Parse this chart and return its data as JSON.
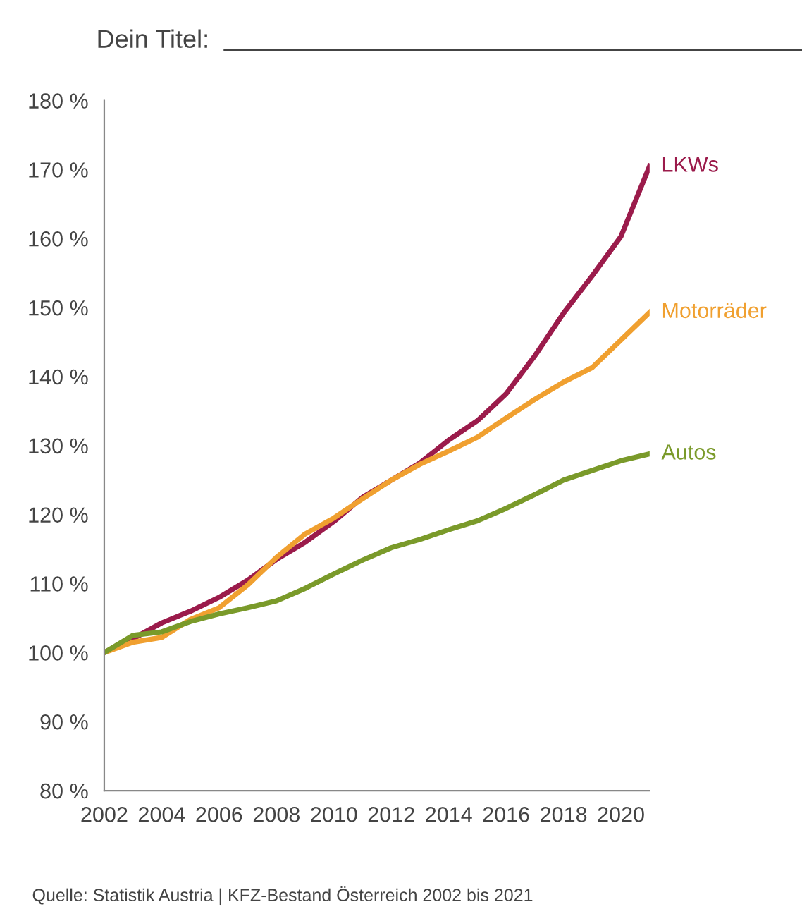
{
  "chart_data": {
    "type": "line",
    "title": "Dein Titel:",
    "x": [
      2002,
      2003,
      2004,
      2005,
      2006,
      2007,
      2008,
      2009,
      2010,
      2011,
      2012,
      2013,
      2014,
      2015,
      2016,
      2017,
      2018,
      2019,
      2020,
      2021
    ],
    "series": [
      {
        "name": "LKWs",
        "color": "#9b1b4b",
        "values": [
          100,
          102,
          104.3,
          106,
          108,
          110.5,
          113.5,
          116,
          119,
          122.5,
          125,
          127.5,
          130.8,
          133.6,
          137.5,
          143,
          149.2,
          154.6,
          160.3,
          170.5
        ]
      },
      {
        "name": "Motorräder",
        "color": "#f0a030",
        "values": [
          100,
          101.5,
          102.2,
          104.8,
          106.5,
          109.8,
          113.8,
          117.2,
          119.5,
          122.3,
          125,
          127.3,
          129.2,
          131.2,
          134,
          136.7,
          139.2,
          141.3,
          145.3,
          149.3
        ]
      },
      {
        "name": "Autos",
        "color": "#7a9a2a",
        "values": [
          100,
          102.5,
          103,
          104.5,
          105.6,
          106.5,
          107.5,
          109.3,
          111.4,
          113.4,
          115.2,
          116.4,
          117.8,
          119.1,
          120.9,
          122.9,
          125,
          126.4,
          127.8,
          128.8
        ]
      }
    ],
    "xlim": [
      2002,
      2021
    ],
    "xticks": [
      2002,
      2004,
      2006,
      2008,
      2010,
      2012,
      2014,
      2016,
      2018,
      2020
    ],
    "ylim": [
      80,
      180
    ],
    "yticks": [
      {
        "value": 80,
        "label": "80 %"
      },
      {
        "value": 90,
        "label": "90 %"
      },
      {
        "value": 100,
        "label": "100 %"
      },
      {
        "value": 110,
        "label": "110 %"
      },
      {
        "value": 120,
        "label": "120 %"
      },
      {
        "value": 130,
        "label": "130 %"
      },
      {
        "value": 140,
        "label": "140 %"
      },
      {
        "value": 150,
        "label": "150 %"
      },
      {
        "value": 160,
        "label": "160 %"
      },
      {
        "value": 170,
        "label": "170 %"
      },
      {
        "value": 180,
        "label": "180 %"
      }
    ],
    "grid": false,
    "legend": false,
    "marker": "none",
    "line_style": "solid",
    "annotations": [
      "Quelle: Statistik Austria | KFZ-Bestand Österreich 2002 bis 2021"
    ]
  }
}
